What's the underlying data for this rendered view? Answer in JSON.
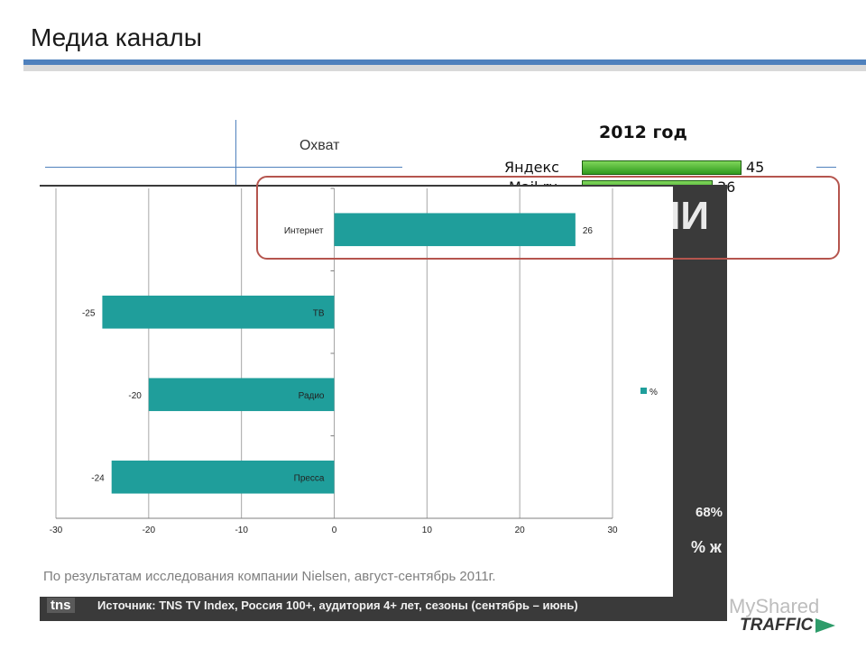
{
  "slide": {
    "title": "Медиа каналы",
    "reach_label": "Охват",
    "footnote": "По результатам исследования компании Nielsen, август-сентябрь 2011г.",
    "watermark": "MyShared",
    "brand": "TRAFFIC"
  },
  "background_slide": {
    "big_text": "ИИ",
    "pct_value": "68%",
    "pct_label": "% ж",
    "source_logo": "tns",
    "source_text": "Источник: TNS TV Index, Россия 100+, аудитория 4+ лет, сезоны (сентябрь – июнь)"
  },
  "ranking": {
    "year": "2012 год",
    "items": [
      {
        "name": "Яндекс",
        "value": 45
      },
      {
        "name": "Mail.ru",
        "value": 36
      }
    ]
  },
  "colors": {
    "bar": "#1f9e9b",
    "accent": "#4f81bd",
    "highlight": "#b5554e"
  },
  "chart_data": {
    "type": "bar",
    "orientation": "horizontal",
    "categories": [
      "Интернет",
      "ТВ",
      "Радио",
      "Пресса"
    ],
    "values": [
      26,
      -25,
      -20,
      -24
    ],
    "series": [
      {
        "name": "%",
        "values": [
          26,
          -25,
          -20,
          -24
        ]
      }
    ],
    "xlim": [
      -30,
      30
    ],
    "xticks": [
      -30,
      -20,
      -10,
      0,
      10,
      20,
      30
    ],
    "grid": true,
    "legend": "right"
  }
}
